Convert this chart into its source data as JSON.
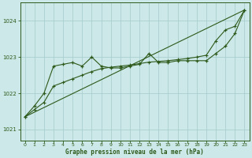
{
  "title": "Graphe pression niveau de la mer (hPa)",
  "bg_color": "#cce8e8",
  "line_color": "#2d5a1b",
  "grid_color": "#aacece",
  "xlim": [
    -0.5,
    23.5
  ],
  "ylim": [
    1020.7,
    1024.5
  ],
  "yticks": [
    1021,
    1022,
    1023,
    1024
  ],
  "xticks": [
    0,
    1,
    2,
    3,
    4,
    5,
    6,
    7,
    8,
    9,
    10,
    11,
    12,
    13,
    14,
    15,
    16,
    17,
    18,
    19,
    20,
    21,
    22,
    23
  ],
  "hours": [
    0,
    1,
    2,
    3,
    4,
    5,
    6,
    7,
    8,
    9,
    10,
    11,
    12,
    13,
    14,
    15,
    16,
    17,
    18,
    19,
    20,
    21,
    22,
    23
  ],
  "pressure_jagged": [
    1021.35,
    1021.65,
    1022.0,
    1022.75,
    1022.8,
    1022.85,
    1022.75,
    1023.0,
    1022.75,
    1022.7,
    1022.7,
    1022.75,
    1022.8,
    1023.1,
    1022.85,
    1022.85,
    1022.9,
    1022.9,
    1022.9,
    1022.9,
    1023.1,
    1023.3,
    1023.65,
    1024.3
  ],
  "pressure_smooth": [
    1021.35,
    1021.55,
    1021.75,
    1022.2,
    1022.3,
    1022.4,
    1022.5,
    1022.6,
    1022.68,
    1022.72,
    1022.75,
    1022.78,
    1022.82,
    1022.86,
    1022.88,
    1022.9,
    1022.93,
    1022.96,
    1023.0,
    1023.05,
    1023.45,
    1023.75,
    1023.85,
    1024.3
  ],
  "trend_x": [
    0,
    23
  ],
  "trend_y": [
    1021.35,
    1024.3
  ]
}
